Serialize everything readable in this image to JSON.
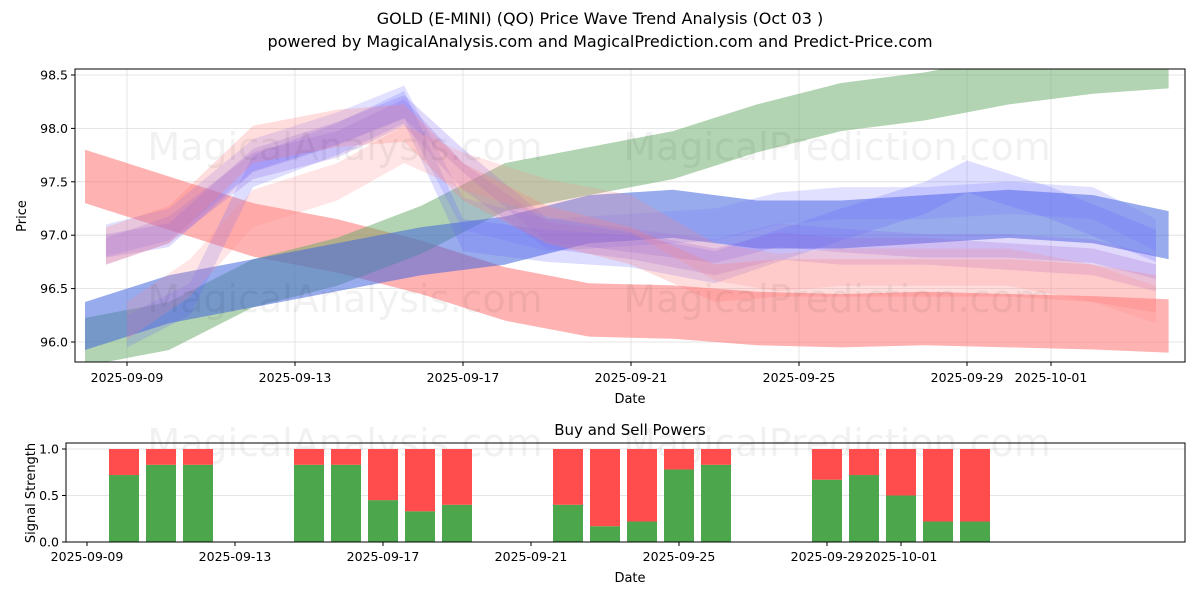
{
  "title": "GOLD (E-MINI) (QO) Price Wave Trend Analysis (Oct 03 )",
  "subtitle": "powered by MagicalAnalysis.com and MagicalPrediction.com and Predict-Price.com",
  "watermarks": [
    "MagicalAnalysis.com",
    "MagicalPrediction.com"
  ],
  "chart_data": [
    {
      "type": "area",
      "title": "",
      "xlabel": "Date",
      "ylabel": "Price",
      "ylim": [
        95.8,
        98.55
      ],
      "yticks": [
        "96.0",
        "96.5",
        "97.0",
        "97.5",
        "98.0",
        "98.5"
      ],
      "ytick_values": [
        96.0,
        96.5,
        97.0,
        97.5,
        98.0,
        98.5
      ],
      "xticks": [
        "2025-09-09",
        "2025-09-13",
        "2025-09-17",
        "2025-09-21",
        "2025-09-25",
        "2025-09-29",
        "2025-10-01"
      ],
      "xtick_days": [
        0,
        4,
        8,
        12,
        16,
        20,
        22
      ],
      "x_origin": "2025-09-09",
      "xlim_days": [
        -1.25,
        25.2
      ],
      "grid": true,
      "series": [
        {
          "name": "red-trend-down",
          "color": "#ff6666",
          "opacity": 0.5,
          "width": 0.5,
          "x": [
            -1,
            1,
            3,
            5,
            7,
            9,
            11,
            13,
            15,
            17,
            19,
            21,
            23,
            24.8
          ],
          "y": [
            97.55,
            97.3,
            97.05,
            96.9,
            96.7,
            96.45,
            96.3,
            96.28,
            96.22,
            96.2,
            96.22,
            96.2,
            96.18,
            96.15
          ]
        },
        {
          "name": "green-trend-up",
          "color": "#66aa66",
          "opacity": 0.5,
          "width": 0.45,
          "x": [
            -1,
            1,
            3,
            5,
            7,
            9,
            11,
            13,
            15,
            17,
            19,
            21,
            23,
            24.8
          ],
          "y": [
            96.0,
            96.15,
            96.55,
            96.75,
            97.05,
            97.45,
            97.6,
            97.75,
            98.0,
            98.2,
            98.3,
            98.45,
            98.55,
            98.6
          ]
        },
        {
          "name": "blue-trend-up",
          "color": "#4466dd",
          "opacity": 0.55,
          "width": 0.45,
          "x": [
            -1,
            1,
            3,
            5,
            7,
            9,
            11,
            13,
            15,
            17,
            19,
            21,
            23,
            24.8
          ],
          "y": [
            96.15,
            96.4,
            96.55,
            96.7,
            96.85,
            96.95,
            97.15,
            97.2,
            97.1,
            97.1,
            97.15,
            97.2,
            97.15,
            97.0
          ]
        },
        {
          "name": "purple-wave-1",
          "color": "#8866ee",
          "opacity": 0.25,
          "width": 0.22,
          "x": [
            -0.5,
            1,
            3,
            5,
            6.6,
            8,
            10,
            12,
            14,
            15.5,
            17,
            19,
            21,
            23,
            24.5
          ],
          "y": [
            96.9,
            97.0,
            97.7,
            97.95,
            98.2,
            97.7,
            97.05,
            96.95,
            96.85,
            97.0,
            96.95,
            96.9,
            96.9,
            96.85,
            96.7
          ]
        },
        {
          "name": "purple-wave-2",
          "color": "#9966dd",
          "opacity": 0.25,
          "width": 0.25,
          "x": [
            -0.5,
            1,
            3,
            5,
            6.6,
            8,
            10,
            12,
            14,
            15.5,
            17,
            19,
            21,
            23,
            24.5
          ],
          "y": [
            96.85,
            97.05,
            97.65,
            97.85,
            98.15,
            97.55,
            97.0,
            96.9,
            96.75,
            96.9,
            96.85,
            96.85,
            96.8,
            96.75,
            96.6
          ]
        },
        {
          "name": "blue-wave-1",
          "color": "#7777ff",
          "opacity": 0.22,
          "width": 0.3,
          "x": [
            -0.5,
            1,
            3,
            5,
            6.6,
            8,
            10,
            12,
            14,
            15.5,
            17,
            19,
            21,
            23,
            24.5
          ],
          "y": [
            96.95,
            97.1,
            97.75,
            98.0,
            98.25,
            97.2,
            97.0,
            97.05,
            97.1,
            97.25,
            97.3,
            97.3,
            97.35,
            97.3,
            97.0
          ]
        },
        {
          "name": "blue-wave-2",
          "color": "#6666ff",
          "opacity": 0.22,
          "width": 0.3,
          "x": [
            0,
            1.5,
            3,
            5,
            6.6,
            8,
            10,
            12,
            14,
            15.5,
            17,
            19,
            20,
            22,
            24.5
          ],
          "y": [
            96.1,
            96.4,
            97.6,
            97.9,
            98.2,
            97.0,
            96.9,
            96.85,
            96.7,
            96.9,
            97.1,
            97.35,
            97.55,
            97.3,
            96.9
          ]
        },
        {
          "name": "red-wave-1",
          "color": "#ff7777",
          "opacity": 0.25,
          "width": 0.35,
          "x": [
            -0.5,
            1,
            3,
            5,
            6.6,
            8,
            10,
            12,
            14,
            15.5,
            17,
            19,
            21,
            23,
            24.5
          ],
          "y": [
            96.9,
            97.1,
            97.85,
            98.0,
            98.05,
            97.5,
            97.1,
            96.9,
            96.55,
            96.6,
            96.6,
            96.6,
            96.6,
            96.55,
            96.45
          ]
        },
        {
          "name": "red-wave-2",
          "color": "#ff8888",
          "opacity": 0.22,
          "width": 0.35,
          "x": [
            0,
            1.5,
            3,
            5,
            6.6,
            8,
            10,
            12,
            14,
            15.5,
            17,
            19,
            21,
            23,
            24.5
          ],
          "y": [
            96.2,
            96.6,
            97.25,
            97.5,
            97.85,
            97.6,
            97.35,
            97.2,
            96.75,
            96.65,
            96.7,
            96.7,
            96.7,
            96.55,
            96.35
          ]
        }
      ]
    },
    {
      "type": "bar",
      "title": "Buy and Sell Powers",
      "xlabel": "Date",
      "ylabel": "Signal Strength",
      "ylim": [
        0,
        1.05
      ],
      "yticks": [
        "0.0",
        "0.5",
        "1.0"
      ],
      "ytick_values": [
        0,
        0.5,
        1.0
      ],
      "xticks": [
        "2025-09-09",
        "2025-09-13",
        "2025-09-17",
        "2025-09-21",
        "2025-09-25",
        "2025-09-29",
        "2025-10-01"
      ],
      "xtick_days": [
        0,
        4,
        8,
        12,
        16,
        20,
        22
      ],
      "xlim_days": [
        -0.6,
        29.6
      ],
      "categories": [
        "2025-09-10",
        "2025-09-11",
        "2025-09-12",
        "2025-09-15",
        "2025-09-16",
        "2025-09-17",
        "2025-09-18",
        "2025-09-19",
        "2025-09-22",
        "2025-09-23",
        "2025-09-24",
        "2025-09-25",
        "2025-09-26",
        "2025-09-29",
        "2025-09-30",
        "2025-10-01",
        "2025-10-02",
        "2025-10-03"
      ],
      "days": [
        1,
        2,
        3,
        6,
        7,
        8,
        9,
        10,
        13,
        14,
        15,
        16,
        17,
        20,
        21,
        22,
        23,
        24
      ],
      "series": [
        {
          "name": "Buy",
          "color": "#4ca64c",
          "values": [
            0.72,
            0.83,
            0.83,
            0.83,
            0.83,
            0.45,
            0.33,
            0.4,
            0.4,
            0.17,
            0.22,
            0.78,
            0.83,
            0.67,
            0.72,
            0.5,
            0.22,
            0.22
          ]
        },
        {
          "name": "Sell",
          "color": "#ff4c4c",
          "values": [
            0.28,
            0.17,
            0.17,
            0.17,
            0.17,
            0.55,
            0.67,
            0.6,
            0.6,
            0.83,
            0.78,
            0.22,
            0.17,
            0.33,
            0.28,
            0.5,
            0.78,
            0.78
          ]
        }
      ]
    }
  ]
}
